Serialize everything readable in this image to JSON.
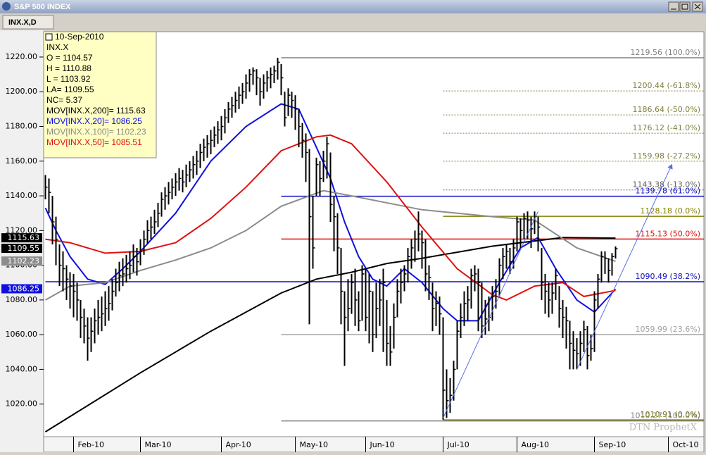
{
  "window": {
    "title": "S&P 500 INDEX",
    "tab": "INX.X,D"
  },
  "chart_data": {
    "type": "ohlc",
    "watermark": "DTN ProphetX",
    "xlim": [
      -0.5,
      187.1
    ],
    "xticks": [
      {
        "value": 8,
        "label": "Feb-10"
      },
      {
        "value": 27,
        "label": "Mar-10"
      },
      {
        "value": 50,
        "label": "Apr-10"
      },
      {
        "value": 71,
        "label": "May-10"
      },
      {
        "value": 91,
        "label": "Jun-10"
      },
      {
        "value": 113,
        "label": "Jul-10"
      },
      {
        "value": 134,
        "label": "Aug-10"
      },
      {
        "value": 156,
        "label": "Sep-10"
      },
      {
        "value": 177,
        "label": "Oct-10"
      }
    ],
    "ylim": [
      1001.2,
      1234.6
    ],
    "yticks": [
      {
        "value": 1020,
        "label": "1020.00"
      },
      {
        "value": 1040,
        "label": "1040.00"
      },
      {
        "value": 1060,
        "label": "1060.00"
      },
      {
        "value": 1080,
        "label": "1080.00"
      },
      {
        "value": 1100,
        "label": "1100.00"
      },
      {
        "value": 1120,
        "label": "1120.00"
      },
      {
        "value": 1140,
        "label": "1140.00"
      },
      {
        "value": 1160,
        "label": "1160.00"
      },
      {
        "value": 1180,
        "label": "1180.00"
      },
      {
        "value": 1200,
        "label": "1200.00"
      },
      {
        "value": 1220,
        "label": "1220.00"
      }
    ],
    "bar_color": "#000000",
    "high": [
      1152,
      1150,
      1140,
      1128,
      1112,
      1108,
      1100,
      1096,
      1095,
      1090,
      1080,
      1075,
      1070,
      1070,
      1075,
      1080,
      1082,
      1085,
      1088,
      1092,
      1098,
      1102,
      1104,
      1106,
      1108,
      1112,
      1110,
      1115,
      1120,
      1126,
      1128,
      1132,
      1136,
      1142,
      1145,
      1148,
      1150,
      1153,
      1156,
      1155,
      1158,
      1160,
      1163,
      1166,
      1170,
      1173,
      1175,
      1178,
      1180,
      1183,
      1186,
      1190,
      1194,
      1197,
      1200,
      1203,
      1205,
      1210,
      1213,
      1214,
      1213,
      1208,
      1210,
      1212,
      1214,
      1215,
      1219.56,
      1216,
      1200,
      1202,
      1200,
      1198,
      1190,
      1182,
      1176,
      1167,
      1140,
      1162,
      1160,
      1166,
      1174,
      1165,
      1140,
      1130,
      1110,
      1085,
      1092,
      1095,
      1098,
      1085,
      1100,
      1098,
      1095,
      1085,
      1090,
      1092,
      1098,
      1080,
      1065,
      1078,
      1092,
      1098,
      1100,
      1110,
      1115,
      1120,
      1131,
      1120,
      1115,
      1100,
      1090,
      1085,
      1082,
      1070,
      1040,
      1035,
      1045,
      1068,
      1078,
      1085,
      1088,
      1098,
      1100,
      1098,
      1090,
      1080,
      1082,
      1088,
      1092,
      1104,
      1110,
      1112,
      1110,
      1115,
      1128,
      1127,
      1130,
      1131,
      1128,
      1131,
      1128,
      1110,
      1095,
      1090,
      1090,
      1098,
      1088,
      1080,
      1076,
      1068,
      1062,
      1058,
      1062,
      1068,
      1065,
      1060,
      1085,
      1095,
      1108,
      1108,
      1104,
      1107,
      1110.88
    ],
    "low": [
      1138,
      1130,
      1112,
      1100,
      1088,
      1085,
      1080,
      1075,
      1070,
      1068,
      1058,
      1055,
      1045,
      1050,
      1055,
      1060,
      1062,
      1065,
      1068,
      1074,
      1082,
      1085,
      1088,
      1090,
      1092,
      1096,
      1094,
      1100,
      1106,
      1112,
      1115,
      1118,
      1122,
      1128,
      1132,
      1135,
      1138,
      1140,
      1143,
      1142,
      1145,
      1148,
      1150,
      1152,
      1156,
      1160,
      1162,
      1164,
      1168,
      1170,
      1172,
      1176,
      1182,
      1185,
      1188,
      1190,
      1193,
      1196,
      1200,
      1204,
      1198,
      1192,
      1196,
      1200,
      1202,
      1205,
      1207,
      1198,
      1180,
      1186,
      1185,
      1178,
      1168,
      1162,
      1148,
      1066,
      1098,
      1140,
      1140,
      1148,
      1150,
      1125,
      1108,
      1095,
      1066,
      1042,
      1062,
      1072,
      1065,
      1062,
      1068,
      1062,
      1055,
      1050,
      1058,
      1065,
      1050,
      1042,
      1042,
      1052,
      1070,
      1078,
      1085,
      1090,
      1098,
      1102,
      1108,
      1098,
      1085,
      1080,
      1062,
      1065,
      1060,
      1011,
      1012,
      1015,
      1022,
      1040,
      1058,
      1065,
      1068,
      1075,
      1085,
      1062,
      1058,
      1060,
      1062,
      1068,
      1075,
      1082,
      1092,
      1098,
      1095,
      1098,
      1108,
      1110,
      1115,
      1115,
      1110,
      1118,
      1108,
      1080,
      1072,
      1070,
      1072,
      1080,
      1064,
      1058,
      1052,
      1040,
      1040,
      1040,
      1042,
      1050,
      1040,
      1045,
      1050,
      1075,
      1090,
      1095,
      1090,
      1094,
      1103.92
    ],
    "close": [
      1145,
      1142,
      1125,
      1115,
      1100,
      1098,
      1092,
      1088,
      1085,
      1080,
      1070,
      1065,
      1058,
      1062,
      1068,
      1070,
      1072,
      1075,
      1078,
      1085,
      1090,
      1094,
      1095,
      1098,
      1100,
      1105,
      1102,
      1108,
      1115,
      1120,
      1122,
      1125,
      1130,
      1138,
      1140,
      1142,
      1145,
      1148,
      1150,
      1148,
      1152,
      1155,
      1158,
      1160,
      1165,
      1168,
      1170,
      1172,
      1175,
      1178,
      1180,
      1185,
      1190,
      1192,
      1195,
      1198,
      1200,
      1205,
      1210,
      1212,
      1208,
      1200,
      1205,
      1208,
      1210,
      1212,
      1217,
      1208,
      1185,
      1198,
      1195,
      1190,
      1180,
      1172,
      1165,
      1128,
      1110,
      1158,
      1150,
      1160,
      1170,
      1135,
      1128,
      1110,
      1085,
      1070,
      1075,
      1090,
      1080,
      1068,
      1095,
      1070,
      1085,
      1060,
      1075,
      1080,
      1090,
      1055,
      1050,
      1070,
      1085,
      1090,
      1095,
      1105,
      1110,
      1115,
      1118,
      1113,
      1095,
      1093,
      1075,
      1078,
      1072,
      1028,
      1022,
      1025,
      1040,
      1062,
      1070,
      1078,
      1080,
      1094,
      1095,
      1090,
      1065,
      1069,
      1070,
      1082,
      1085,
      1100,
      1105,
      1108,
      1102,
      1110,
      1125,
      1120,
      1127,
      1126,
      1121,
      1128,
      1122,
      1090,
      1085,
      1080,
      1084,
      1094,
      1075,
      1070,
      1068,
      1055,
      1051,
      1049,
      1055,
      1063,
      1048,
      1052,
      1080,
      1092,
      1105,
      1104,
      1097,
      1105,
      1109.55
    ],
    "series": [
      {
        "name": "MOV[INX.X,200]",
        "color": "#000000",
        "x": [
          0,
          27,
          47,
          67,
          77,
          87,
          97,
          107,
          127,
          147,
          162
        ],
        "values": [
          1004,
          1038,
          1062,
          1084,
          1092,
          1096,
          1101,
          1104,
          1111,
          1116,
          1115.63
        ]
      },
      {
        "name": "MOV[INX.X,20]",
        "color": "#1010e0",
        "x": [
          0,
          3,
          7,
          12,
          17,
          22,
          27,
          37,
          47,
          57,
          67,
          72,
          77,
          81,
          85,
          89,
          93,
          97,
          102,
          107,
          113,
          117,
          123,
          129,
          135,
          140,
          145,
          151,
          156,
          162
        ],
        "values": [
          1133,
          1120,
          1105,
          1092,
          1089,
          1098,
          1108,
          1130,
          1160,
          1180,
          1193,
          1190,
          1168,
          1150,
          1125,
          1105,
          1092,
          1088,
          1098,
          1090,
          1075,
          1068,
          1068,
          1090,
          1110,
          1116,
          1098,
          1080,
          1073,
          1086.25
        ]
      },
      {
        "name": "MOV[INX.X,100]",
        "color": "#8c8c8c",
        "x": [
          0,
          7,
          17,
          27,
          37,
          47,
          57,
          67,
          79,
          87,
          107,
          127,
          139,
          151,
          162
        ],
        "values": [
          1080,
          1088,
          1090,
          1097,
          1103,
          1110,
          1120,
          1134,
          1143,
          1140,
          1132,
          1128,
          1126,
          1110,
          1102.23
        ]
      },
      {
        "name": "MOV[INX.X,50]",
        "color": "#e01010",
        "x": [
          0,
          7,
          17,
          27,
          37,
          47,
          57,
          67,
          77,
          81,
          87,
          97,
          107,
          117,
          127,
          131,
          139,
          147,
          153,
          162
        ],
        "values": [
          1115,
          1113,
          1107,
          1108,
          1113,
          1127,
          1145,
          1166,
          1174,
          1175,
          1170,
          1148,
          1122,
          1098,
          1083,
          1080,
          1088,
          1090,
          1082,
          1085.51
        ]
      }
    ],
    "price_tags": [
      {
        "value": 1115.63,
        "color": "#000000"
      },
      {
        "value": 1109.55,
        "color": "#000000"
      },
      {
        "value": 1102.23,
        "color": "#8c8c8c"
      },
      {
        "value": 1086.25,
        "color": "#1010e0"
      }
    ],
    "levels": [
      {
        "value": 1219.56,
        "label": "1219.56 (100.0%)",
        "color": "#808080",
        "style": "solid",
        "x0": 67
      },
      {
        "value": 1200.44,
        "label": "1200.44 (-61.8%)",
        "color": "#808040",
        "style": "dotted",
        "x0": 113
      },
      {
        "value": 1186.64,
        "label": "1186.64 (-50.0%)",
        "color": "#808040",
        "style": "dotted",
        "x0": 113
      },
      {
        "value": 1176.12,
        "label": "1176.12 (-41.0%)",
        "color": "#808040",
        "style": "dotted",
        "x0": 113
      },
      {
        "value": 1159.98,
        "label": "1159.98 (-27.2%)",
        "color": "#808040",
        "style": "dotted",
        "x0": 113
      },
      {
        "value": 1143.38,
        "label": "1143.38 (-13.0%)",
        "color": "#606060",
        "style": "dotted",
        "x0": 113
      },
      {
        "value": 1139.78,
        "label": "1139.78 (61.0%)",
        "color": "#1010c0",
        "style": "solid",
        "x0": 67
      },
      {
        "value": 1128.18,
        "label": "1128.18 (0.0%)",
        "color": "#808000",
        "style": "solid",
        "x0": 113
      },
      {
        "value": 1115.13,
        "label": "1115.13 (50.0%)",
        "color": "#e01010",
        "style": "solid",
        "x0": 67
      },
      {
        "value": 1090.49,
        "label": "1090.49 (38.2%)",
        "color": "#1010c0",
        "style": "solid",
        "x0": 0
      },
      {
        "value": 1059.99,
        "label": "1059.99 (23.6%)",
        "color": "#a0a0a0",
        "style": "solid",
        "x0": 67
      },
      {
        "value": 1010.91,
        "label": "1010.91 (0.0%)",
        "color": "#808000",
        "style": "solid",
        "x0": 113
      },
      {
        "value": 1010.27,
        "label": "1010.27 (100.0%)",
        "color": "#808080",
        "style": "solid",
        "x0": 67
      }
    ],
    "trendlines": [
      {
        "x": [
          113,
          140
        ],
        "y": [
          1012,
          1131
        ],
        "color": "#5a70e0"
      },
      {
        "x": [
          151,
          178
        ],
        "y": [
          1040,
          1158
        ],
        "color": "#5a70e0"
      }
    ],
    "info_box": [
      {
        "text": "10-Sep-2010",
        "color": "#000000"
      },
      {
        "text": "INX.X",
        "color": "#000000"
      },
      {
        "text": "O = 1104.57",
        "color": "#000000"
      },
      {
        "text": "H = 1110.88",
        "color": "#000000"
      },
      {
        "text": "L = 1103.92",
        "color": "#000000"
      },
      {
        "text": "LA= 1109.55",
        "color": "#000000"
      },
      {
        "text": "NC= 5.37",
        "color": "#000000"
      },
      {
        "text": "MOV[INX.X,200]= 1115.63",
        "color": "#000000"
      },
      {
        "text": "MOV[INX.X,20]= 1086.25",
        "color": "#1010e0"
      },
      {
        "text": "MOV[INX.X,100]= 1102.23",
        "color": "#8c8c8c"
      },
      {
        "text": "MOV[INX.X,50]= 1085.51",
        "color": "#e01010"
      }
    ]
  }
}
